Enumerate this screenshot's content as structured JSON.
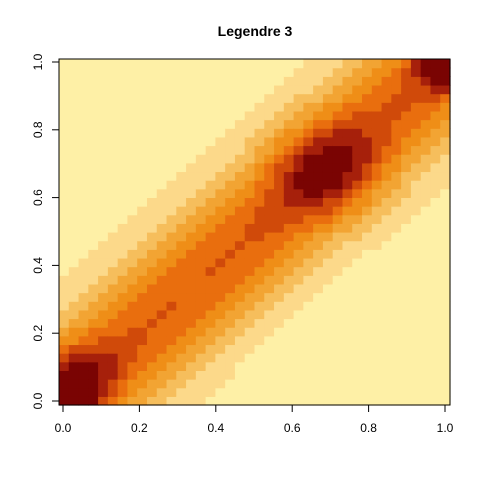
{
  "chart_data": {
    "type": "heatmap",
    "title": "Legendre 3",
    "xlabel": "",
    "ylabel": "",
    "xlim": [
      0.0,
      1.0
    ],
    "ylim": [
      0.0,
      1.0
    ],
    "x_ticks": [
      "0.0",
      "0.2",
      "0.4",
      "0.6",
      "0.8",
      "1.0"
    ],
    "y_ticks": [
      "0.0",
      "0.2",
      "0.4",
      "0.6",
      "0.8",
      "1.0"
    ],
    "grid_size": 40,
    "grid": false,
    "legend": "none",
    "palette": [
      "#FFFFC8",
      "#FEF0A6",
      "#FCD98A",
      "#F6BE5C",
      "#F2A433",
      "#EF8E17",
      "#E96E0E",
      "#D04A0A",
      "#A6200B",
      "#7A0403"
    ],
    "description_levels": "value grid rendered with heat colors: low (pale yellow) to high (dark red)"
  }
}
